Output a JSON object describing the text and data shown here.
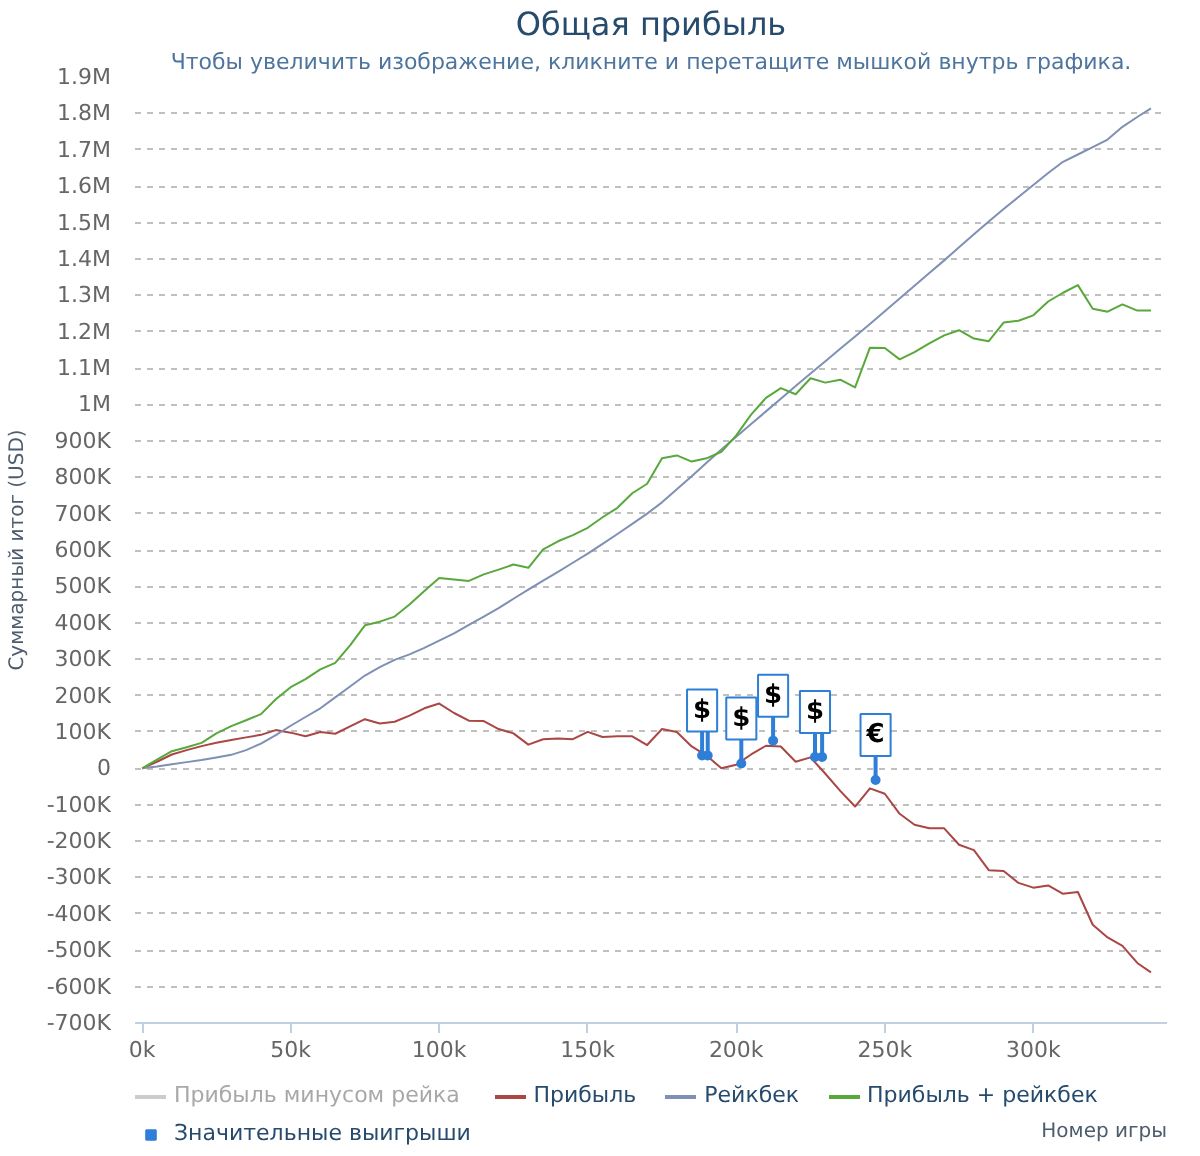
{
  "chart_data": {
    "type": "line",
    "title": "Общая прибыль",
    "subtitle": "Чтобы увеличить изображение, кликните и перетащите мышкой внутрь графика.",
    "xlabel": "Номер игры",
    "ylabel": "Суммарный итог (USD)",
    "xlim": [
      -2400,
      345000
    ],
    "ylim": [
      -700000,
      1900000
    ],
    "xticks": [
      {
        "value": 0,
        "label": "0k"
      },
      {
        "value": 50000,
        "label": "50k"
      },
      {
        "value": 100000,
        "label": "100k"
      },
      {
        "value": 150000,
        "label": "150k"
      },
      {
        "value": 200000,
        "label": "200k"
      },
      {
        "value": 250000,
        "label": "250k"
      },
      {
        "value": 300000,
        "label": "300k"
      }
    ],
    "yticks": [
      {
        "value": -700000,
        "label": "-700K"
      },
      {
        "value": -600000,
        "label": "-600K"
      },
      {
        "value": -500000,
        "label": "-500K"
      },
      {
        "value": -400000,
        "label": "-400K"
      },
      {
        "value": -300000,
        "label": "-300K"
      },
      {
        "value": -200000,
        "label": "-200K"
      },
      {
        "value": -100000,
        "label": "-100K"
      },
      {
        "value": 0,
        "label": "0"
      },
      {
        "value": 100000,
        "label": "100K"
      },
      {
        "value": 200000,
        "label": "200K"
      },
      {
        "value": 300000,
        "label": "300K"
      },
      {
        "value": 400000,
        "label": "400K"
      },
      {
        "value": 500000,
        "label": "500K"
      },
      {
        "value": 600000,
        "label": "600K"
      },
      {
        "value": 700000,
        "label": "700K"
      },
      {
        "value": 800000,
        "label": "800K"
      },
      {
        "value": 900000,
        "label": "900K"
      },
      {
        "value": 1000000,
        "label": "1M"
      },
      {
        "value": 1100000,
        "label": "1.1M"
      },
      {
        "value": 1200000,
        "label": "1.2M"
      },
      {
        "value": 1300000,
        "label": "1.3M"
      },
      {
        "value": 1400000,
        "label": "1.4M"
      },
      {
        "value": 1500000,
        "label": "1.5M"
      },
      {
        "value": 1600000,
        "label": "1.6M"
      },
      {
        "value": 1700000,
        "label": "1.7M"
      },
      {
        "value": 1800000,
        "label": "1.8M"
      },
      {
        "value": 1900000,
        "label": "1.9M"
      }
    ],
    "grid": "y",
    "legend": "bottom",
    "x": [
      0,
      5000,
      10000,
      15000,
      20000,
      25000,
      30000,
      35000,
      40000,
      45000,
      50000,
      55000,
      60000,
      65000,
      70000,
      75000,
      80000,
      85000,
      90000,
      95000,
      100000,
      105000,
      110000,
      115000,
      120000,
      125000,
      130000,
      135000,
      140000,
      145000,
      150000,
      155000,
      160000,
      165000,
      170000,
      175000,
      180000,
      185000,
      190000,
      195000,
      200000,
      205000,
      210000,
      215000,
      220000,
      225000,
      230000,
      235000,
      240000,
      245000,
      250000,
      255000,
      260000,
      265000,
      270000,
      275000,
      280000,
      285000,
      290000,
      295000,
      300000,
      305000,
      310000,
      315000,
      320000,
      325000,
      330000,
      335000,
      339600
    ],
    "series": [
      {
        "name": "Прибыль минусом рейка",
        "color": "#cccccc",
        "values": [
          null,
          null,
          null,
          null,
          null,
          null,
          null,
          null,
          null,
          null,
          null,
          null,
          null,
          null,
          null,
          null,
          null,
          null,
          null,
          null,
          null,
          null,
          null,
          null,
          null,
          null,
          null,
          null,
          null,
          null,
          null,
          null,
          null,
          null,
          null,
          null,
          null,
          null,
          null,
          null,
          null,
          null,
          null,
          null,
          null,
          null,
          null,
          null,
          null,
          null,
          null,
          null,
          null,
          null,
          null,
          null,
          null,
          null,
          null,
          null,
          null,
          null,
          null,
          null,
          null,
          null,
          null,
          null,
          null
        ]
      },
      {
        "name": "Прибыль",
        "color": "#aa4643",
        "values": [
          0,
          18000,
          38000,
          50000,
          61000,
          70000,
          78000,
          85000,
          92000,
          105000,
          98000,
          88000,
          100000,
          95000,
          115000,
          135000,
          123000,
          128000,
          145000,
          165000,
          178000,
          152000,
          131000,
          130000,
          108000,
          96000,
          65000,
          80000,
          82000,
          80000,
          100000,
          86000,
          88000,
          88000,
          64000,
          108000,
          100000,
          60000,
          35000,
          0,
          10000,
          38000,
          62000,
          60000,
          18000,
          30000,
          -15000,
          -62000,
          -105000,
          -55000,
          -70000,
          -125000,
          -155000,
          -165000,
          -165000,
          -210000,
          -225000,
          -280000,
          -282000,
          -315000,
          -328000,
          -322000,
          -345000,
          -340000,
          -430000,
          -465000,
          -488000,
          -535000,
          -561000
        ]
      },
      {
        "name": "Рейкбек",
        "color": "#7f90b5",
        "values": [
          0,
          5000,
          11000,
          17000,
          23000,
          30000,
          37000,
          50000,
          68000,
          91000,
          117000,
          141000,
          165000,
          195000,
          225000,
          255000,
          278000,
          298000,
          313000,
          331000,
          351000,
          371000,
          394000,
          417000,
          440000,
          466000,
          491000,
          516000,
          540000,
          565000,
          590000,
          617000,
          644000,
          672000,
          700000,
          731000,
          767000,
          803000,
          840000,
          876000,
          911000,
          946000,
          981000,
          1016000,
          1051000,
          1085000,
          1119000,
          1153000,
          1187000,
          1221000,
          1256000,
          1291000,
          1326000,
          1361000,
          1396000,
          1432000,
          1468000,
          1503000,
          1537000,
          1570000,
          1603000,
          1636000,
          1667000,
          1687000,
          1707000,
          1728000,
          1763000,
          1790000,
          1814000
        ]
      },
      {
        "name": "Прибыль + рейкбек",
        "color": "#58a83c",
        "values": [
          0,
          24000,
          47000,
          58000,
          70000,
          96000,
          116000,
          132000,
          149000,
          190000,
          223000,
          245000,
          272000,
          290000,
          338000,
          393000,
          403000,
          417000,
          450000,
          487000,
          523000,
          519000,
          515000,
          533000,
          546000,
          560000,
          551000,
          602000,
          624000,
          641000,
          661000,
          690000,
          716000,
          756000,
          782000,
          852000,
          860000,
          843000,
          852000,
          870000,
          915000,
          972000,
          1018000,
          1045000,
          1028000,
          1072000,
          1060000,
          1068000,
          1047000,
          1156000,
          1155000,
          1124000,
          1144000,
          1168000,
          1190000,
          1204000,
          1181000,
          1174000,
          1225000,
          1230000,
          1245000,
          1283000,
          1307000,
          1328000,
          1263000,
          1255000,
          1275000,
          1258000,
          1258000
        ]
      },
      {
        "type": "scatter",
        "name": "Значительные выигрыши",
        "color": "#2f7ed8",
        "x": [
          188500,
          190400,
          201700,
          212400,
          226500,
          228900,
          246900
        ],
        "values": [
          35000,
          35000,
          13000,
          76000,
          31000,
          31000,
          -32000
        ],
        "value_labels": [
          "$",
          null,
          "$",
          "$",
          "$",
          null,
          "€"
        ]
      }
    ]
  }
}
